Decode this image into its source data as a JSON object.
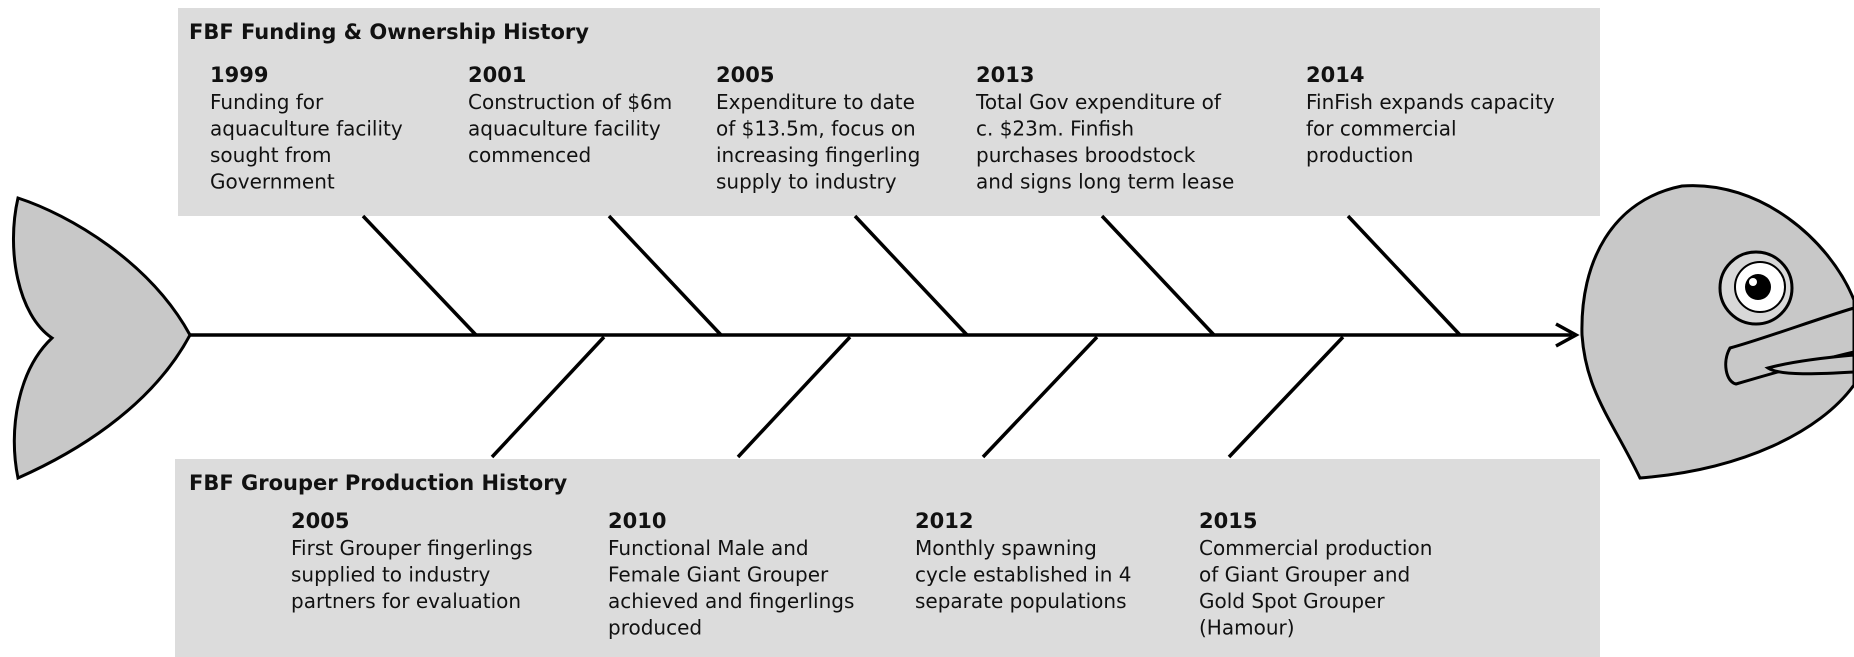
{
  "top": {
    "title": "FBF Funding & Ownership History",
    "items": [
      {
        "year": "1999",
        "lines": [
          "Funding for",
          "aquaculture facility",
          "sought from",
          "Government"
        ]
      },
      {
        "year": "2001",
        "lines": [
          "Construction of $6m",
          "aquaculture facility",
          "commenced"
        ]
      },
      {
        "year": "2005",
        "lines": [
          "Expenditure to date",
          "of $13.5m, focus on",
          "increasing fingerling",
          "supply to industry"
        ]
      },
      {
        "year": "2013",
        "lines": [
          "Total Gov expenditure of",
          "c. $23m. Finfish",
          "purchases broodstock",
          "and signs long term lease"
        ]
      },
      {
        "year": "2014",
        "lines": [
          "FinFish expands capacity",
          "for commercial",
          "production"
        ]
      }
    ]
  },
  "bottom": {
    "title": "FBF Grouper Production History",
    "items": [
      {
        "year": "2005",
        "lines": [
          "First Grouper fingerlings",
          "supplied to industry",
          "partners for evaluation"
        ]
      },
      {
        "year": "2010",
        "lines": [
          "Functional Male and",
          "Female Giant Grouper",
          "achieved and fingerlings",
          "produced"
        ]
      },
      {
        "year": "2012",
        "lines": [
          "Monthly spawning",
          "cycle established in 4",
          "separate populations"
        ]
      },
      {
        "year": "2015",
        "lines": [
          "Commercial production",
          "of Giant Grouper and",
          "Gold Spot Grouper",
          "(Hamour)"
        ]
      }
    ]
  }
}
